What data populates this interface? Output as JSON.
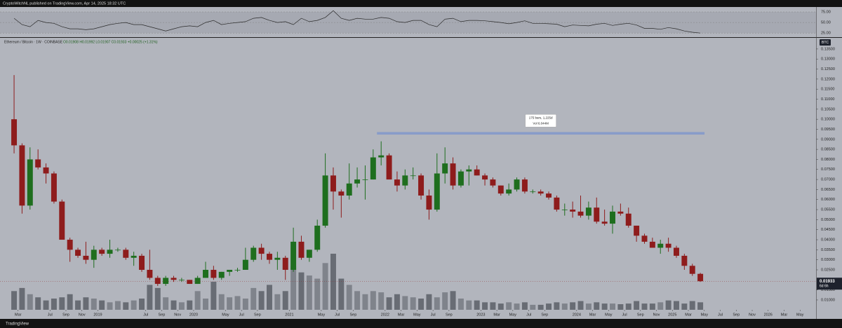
{
  "header": {
    "text": "CryptoWitchNL published on TradingView.com, Apr 14, 2025 18:32 UTC"
  },
  "footer": {
    "brand": "TradingView"
  },
  "chart_data": {
    "type": "candlestick",
    "title": "Ethereum / Bitcoin · 1W · COINBASE",
    "ohlc_text": "O0.01908 H0.01992 L0.01907 C0.01933 +0.00025 (+1.31%)",
    "currency": "BTC",
    "last_price_label": "0.01933",
    "countdown_label": "6d 6h",
    "up_color": "#1e6e1e",
    "down_color": "#8e1c1c",
    "volume_color": "#555a62",
    "x": [
      "2018-02",
      "2018-03",
      "2018-04",
      "2018-05",
      "2018-06",
      "2018-07",
      "2018-08",
      "2018-09",
      "2018-10",
      "2018-11",
      "2018-12",
      "2019-01",
      "2019-02",
      "2019-03",
      "2019-04",
      "2019-05",
      "2019-06",
      "2019-07",
      "2019-08",
      "2019-09",
      "2019-10",
      "2019-11",
      "2019-12",
      "2020-01",
      "2020-02",
      "2020-03",
      "2020-04",
      "2020-05",
      "2020-06",
      "2020-07",
      "2020-08",
      "2020-09",
      "2020-10",
      "2020-11",
      "2020-12",
      "2021-01",
      "2021-02",
      "2021-03",
      "2021-04",
      "2021-05",
      "2021-06",
      "2021-07",
      "2021-08",
      "2021-09",
      "2021-10",
      "2021-11",
      "2021-12",
      "2022-01",
      "2022-02",
      "2022-03",
      "2022-04",
      "2022-05",
      "2022-06",
      "2022-07",
      "2022-08",
      "2022-09",
      "2022-10",
      "2022-11",
      "2022-12",
      "2023-01",
      "2023-02",
      "2023-03",
      "2023-04",
      "2023-05",
      "2023-06",
      "2023-07",
      "2023-08",
      "2023-09",
      "2023-10",
      "2023-11",
      "2023-12",
      "2024-01",
      "2024-02",
      "2024-03",
      "2024-04",
      "2024-05",
      "2024-06",
      "2024-07",
      "2024-08",
      "2024-09",
      "2024-10",
      "2024-11",
      "2024-12",
      "2025-01",
      "2025-02",
      "2025-03",
      "2025-04"
    ],
    "open": [
      0.1,
      0.087,
      0.057,
      0.08,
      0.076,
      0.073,
      0.059,
      0.04,
      0.035,
      0.032,
      0.03,
      0.035,
      0.033,
      0.035,
      0.035,
      0.031,
      0.032,
      0.025,
      0.021,
      0.018,
      0.021,
      0.02,
      0.02,
      0.018,
      0.021,
      0.025,
      0.021,
      0.024,
      0.025,
      0.025,
      0.03,
      0.036,
      0.033,
      0.03,
      0.031,
      0.025,
      0.039,
      0.031,
      0.035,
      0.047,
      0.072,
      0.064,
      0.062,
      0.068,
      0.07,
      0.07,
      0.081,
      0.082,
      0.07,
      0.067,
      0.072,
      0.072,
      0.062,
      0.055,
      0.073,
      0.078,
      0.067,
      0.074,
      0.075,
      0.072,
      0.07,
      0.067,
      0.063,
      0.065,
      0.07,
      0.064,
      0.064,
      0.063,
      0.061,
      0.055,
      0.055,
      0.054,
      0.052,
      0.056,
      0.049,
      0.048,
      0.054,
      0.053,
      0.047,
      0.042,
      0.039,
      0.036,
      0.038,
      0.036,
      0.032,
      0.027,
      0.023
    ],
    "high": [
      0.122,
      0.088,
      0.086,
      0.085,
      0.078,
      0.074,
      0.06,
      0.041,
      0.036,
      0.039,
      0.037,
      0.036,
      0.04,
      0.036,
      0.036,
      0.034,
      0.033,
      0.035,
      0.022,
      0.022,
      0.022,
      0.021,
      0.02,
      0.022,
      0.029,
      0.027,
      0.024,
      0.025,
      0.026,
      0.036,
      0.037,
      0.038,
      0.034,
      0.034,
      0.032,
      0.046,
      0.042,
      0.035,
      0.05,
      0.083,
      0.076,
      0.065,
      0.078,
      0.076,
      0.077,
      0.085,
      0.089,
      0.083,
      0.074,
      0.075,
      0.076,
      0.073,
      0.065,
      0.083,
      0.086,
      0.081,
      0.075,
      0.077,
      0.077,
      0.073,
      0.071,
      0.067,
      0.068,
      0.071,
      0.071,
      0.065,
      0.065,
      0.064,
      0.062,
      0.058,
      0.059,
      0.062,
      0.059,
      0.061,
      0.055,
      0.057,
      0.058,
      0.056,
      0.047,
      0.043,
      0.041,
      0.04,
      0.041,
      0.037,
      0.033,
      0.028,
      0.0235
    ],
    "low": [
      0.083,
      0.053,
      0.055,
      0.075,
      0.068,
      0.058,
      0.04,
      0.029,
      0.031,
      0.028,
      0.026,
      0.032,
      0.031,
      0.034,
      0.03,
      0.027,
      0.024,
      0.02,
      0.017,
      0.017,
      0.019,
      0.019,
      0.018,
      0.018,
      0.021,
      0.02,
      0.02,
      0.022,
      0.024,
      0.025,
      0.029,
      0.03,
      0.028,
      0.025,
      0.02,
      0.024,
      0.03,
      0.029,
      0.034,
      0.046,
      0.055,
      0.051,
      0.06,
      0.066,
      0.06,
      0.07,
      0.077,
      0.071,
      0.064,
      0.065,
      0.07,
      0.06,
      0.05,
      0.054,
      0.068,
      0.065,
      0.066,
      0.067,
      0.072,
      0.067,
      0.066,
      0.062,
      0.062,
      0.064,
      0.063,
      0.063,
      0.062,
      0.06,
      0.054,
      0.052,
      0.051,
      0.051,
      0.05,
      0.048,
      0.047,
      0.043,
      0.052,
      0.046,
      0.039,
      0.038,
      0.036,
      0.033,
      0.034,
      0.031,
      0.025,
      0.022,
      0.019
    ],
    "close": [
      0.087,
      0.057,
      0.08,
      0.076,
      0.073,
      0.059,
      0.04,
      0.035,
      0.032,
      0.03,
      0.035,
      0.033,
      0.035,
      0.035,
      0.031,
      0.032,
      0.025,
      0.021,
      0.018,
      0.021,
      0.02,
      0.02,
      0.018,
      0.021,
      0.025,
      0.021,
      0.024,
      0.025,
      0.025,
      0.03,
      0.036,
      0.033,
      0.03,
      0.031,
      0.025,
      0.039,
      0.031,
      0.035,
      0.047,
      0.072,
      0.064,
      0.062,
      0.068,
      0.07,
      0.07,
      0.081,
      0.082,
      0.07,
      0.067,
      0.072,
      0.072,
      0.062,
      0.055,
      0.073,
      0.078,
      0.067,
      0.074,
      0.075,
      0.072,
      0.07,
      0.067,
      0.063,
      0.065,
      0.07,
      0.064,
      0.064,
      0.063,
      0.061,
      0.055,
      0.055,
      0.054,
      0.052,
      0.056,
      0.049,
      0.048,
      0.054,
      0.053,
      0.047,
      0.042,
      0.039,
      0.036,
      0.038,
      0.036,
      0.032,
      0.027,
      0.023,
      0.01933
    ],
    "volume": [
      30,
      35,
      25,
      20,
      15,
      18,
      20,
      25,
      15,
      20,
      18,
      15,
      12,
      14,
      12,
      15,
      18,
      40,
      35,
      20,
      15,
      12,
      15,
      30,
      18,
      45,
      25,
      20,
      22,
      18,
      35,
      30,
      40,
      25,
      30,
      70,
      60,
      55,
      50,
      75,
      90,
      50,
      40,
      30,
      25,
      30,
      28,
      20,
      25,
      22,
      20,
      18,
      25,
      20,
      28,
      30,
      18,
      15,
      15,
      12,
      12,
      10,
      12,
      10,
      12,
      8,
      8,
      10,
      12,
      10,
      12,
      14,
      10,
      12,
      10,
      10,
      9,
      10,
      14,
      10,
      10,
      12,
      15,
      14,
      10,
      14,
      12
    ],
    "rsi": [
      60,
      45,
      40,
      55,
      50,
      48,
      40,
      35,
      35,
      33,
      35,
      40,
      45,
      48,
      50,
      45,
      45,
      40,
      35,
      30,
      35,
      40,
      42,
      40,
      50,
      55,
      45,
      48,
      50,
      52,
      60,
      62,
      55,
      50,
      52,
      45,
      60,
      52,
      55,
      62,
      78,
      60,
      55,
      60,
      58,
      58,
      62,
      60,
      52,
      50,
      55,
      55,
      45,
      40,
      58,
      60,
      52,
      55,
      55,
      54,
      52,
      50,
      47,
      50,
      54,
      48,
      48,
      47,
      46,
      40,
      44,
      43,
      42,
      46,
      48,
      43,
      46,
      48,
      44,
      36,
      36,
      34,
      38,
      35,
      30,
      27,
      25
    ],
    "rsi_ylim": [
      17,
      85
    ],
    "rsi_yticks": [
      {
        "value": 75,
        "label": "75.00"
      },
      {
        "value": 50,
        "label": "50.00"
      },
      {
        "value": 25,
        "label": "25.00"
      }
    ],
    "xlim": [
      "2018-01",
      "2026-07"
    ],
    "xticks": [
      {
        "value": "2018-03",
        "label": "Mar"
      },
      {
        "value": "2018-07",
        "label": "Jul"
      },
      {
        "value": "2018-09",
        "label": "Sep"
      },
      {
        "value": "2018-11",
        "label": "Nov"
      },
      {
        "value": "2019-01",
        "label": "2019"
      },
      {
        "value": "2019-07",
        "label": "Jul"
      },
      {
        "value": "2019-09",
        "label": "Sep"
      },
      {
        "value": "2019-11",
        "label": "Nov"
      },
      {
        "value": "2020-01",
        "label": "2020"
      },
      {
        "value": "2020-05",
        "label": "May"
      },
      {
        "value": "2020-07",
        "label": "Jul"
      },
      {
        "value": "2020-09",
        "label": "Sep"
      },
      {
        "value": "2021-01",
        "label": "2021"
      },
      {
        "value": "2021-05",
        "label": "May"
      },
      {
        "value": "2021-07",
        "label": "Jul"
      },
      {
        "value": "2021-09",
        "label": "Sep"
      },
      {
        "value": "2022-01",
        "label": "2022"
      },
      {
        "value": "2022-03",
        "label": "Mar"
      },
      {
        "value": "2022-05",
        "label": "May"
      },
      {
        "value": "2022-07",
        "label": "Jul"
      },
      {
        "value": "2022-09",
        "label": "Sep"
      },
      {
        "value": "2023-01",
        "label": "2023"
      },
      {
        "value": "2023-03",
        "label": "Mar"
      },
      {
        "value": "2023-05",
        "label": "May"
      },
      {
        "value": "2023-07",
        "label": "Jul"
      },
      {
        "value": "2023-09",
        "label": "Sep"
      },
      {
        "value": "2024-01",
        "label": "2024"
      },
      {
        "value": "2024-03",
        "label": "Mar"
      },
      {
        "value": "2024-05",
        "label": "May"
      },
      {
        "value": "2024-07",
        "label": "Jul"
      },
      {
        "value": "2024-09",
        "label": "Sep"
      },
      {
        "value": "2024-11",
        "label": "Nov"
      },
      {
        "value": "2025-01",
        "label": "2025"
      },
      {
        "value": "2025-03",
        "label": "Mar"
      },
      {
        "value": "2025-05",
        "label": "May"
      },
      {
        "value": "2025-07",
        "label": "Jul"
      },
      {
        "value": "2025-09",
        "label": "Sep"
      },
      {
        "value": "2025-11",
        "label": "Nov"
      },
      {
        "value": "2026-01",
        "label": "2026"
      },
      {
        "value": "2026-03",
        "label": "Mar"
      },
      {
        "value": "2026-05",
        "label": "May"
      }
    ],
    "ylim": [
      0.0051,
      0.1402
    ],
    "yticks": [
      {
        "value": 0.135,
        "label": "0.13500"
      },
      {
        "value": 0.13,
        "label": "0.13000"
      },
      {
        "value": 0.125,
        "label": "0.12500"
      },
      {
        "value": 0.12,
        "label": "0.12000"
      },
      {
        "value": 0.115,
        "label": "0.11500"
      },
      {
        "value": 0.11,
        "label": "0.11000"
      },
      {
        "value": 0.105,
        "label": "0.10500"
      },
      {
        "value": 0.1,
        "label": "0.10000"
      },
      {
        "value": 0.095,
        "label": "0.09500"
      },
      {
        "value": 0.09,
        "label": "0.09000"
      },
      {
        "value": 0.085,
        "label": "0.08500"
      },
      {
        "value": 0.08,
        "label": "0.08000"
      },
      {
        "value": 0.075,
        "label": "0.07500"
      },
      {
        "value": 0.07,
        "label": "0.07000"
      },
      {
        "value": 0.065,
        "label": "0.06500"
      },
      {
        "value": 0.06,
        "label": "0.06000"
      },
      {
        "value": 0.055,
        "label": "0.05500"
      },
      {
        "value": 0.05,
        "label": "0.05000"
      },
      {
        "value": 0.045,
        "label": "0.04500"
      },
      {
        "value": 0.04,
        "label": "0.04000"
      },
      {
        "value": 0.035,
        "label": "0.03500"
      },
      {
        "value": 0.03,
        "label": "0.03000"
      },
      {
        "value": 0.025,
        "label": "0.02500"
      },
      {
        "value": 0.015,
        "label": "0.01500"
      },
      {
        "value": 0.01,
        "label": "0.01000"
      }
    ],
    "measure": {
      "from": "2021-12",
      "to": "2025-04",
      "value": 0.093,
      "label": "175 bars, 1,225d",
      "volume_label": "Vol 6.044M",
      "color": "#3d6fe0"
    }
  }
}
